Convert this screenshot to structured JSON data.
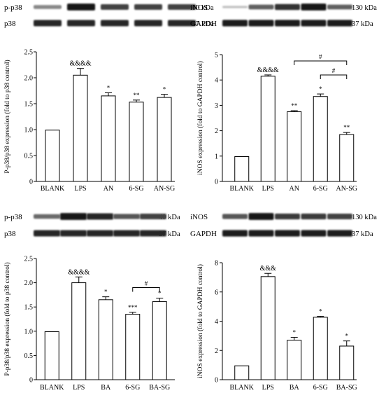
{
  "panels": [
    {
      "blots": [
        {
          "label": "p-p38",
          "kda": "40 kDa",
          "intensity": [
            0.35,
            0.95,
            0.7,
            0.7,
            0.7
          ]
        },
        {
          "label": "p38",
          "kda": "37 kDa",
          "intensity": [
            0.85,
            0.85,
            0.85,
            0.85,
            0.85
          ]
        }
      ]
    },
    {
      "blots": [
        {
          "label": "iNOS",
          "kda": "130 kDa",
          "intensity": [
            0.05,
            0.55,
            0.8,
            0.95,
            0.55
          ]
        },
        {
          "label": "GAPDH",
          "kda": "37 kDa",
          "intensity": [
            0.9,
            0.9,
            0.9,
            0.9,
            0.9
          ]
        }
      ]
    },
    {
      "blots": [
        {
          "label": "p-p38",
          "kda": "40 kDa",
          "intensity": [
            0.5,
            0.95,
            0.85,
            0.6,
            0.7
          ]
        },
        {
          "label": "p38",
          "kda": "37 kDa",
          "intensity": [
            0.85,
            0.85,
            0.85,
            0.85,
            0.85
          ]
        }
      ]
    },
    {
      "blots": [
        {
          "label": "iNOS",
          "kda": "130 kDa",
          "intensity": [
            0.6,
            0.95,
            0.75,
            0.75,
            0.7
          ]
        },
        {
          "label": "GAPDH",
          "kda": "37 kDa",
          "intensity": [
            0.9,
            0.9,
            0.9,
            0.9,
            0.9
          ]
        }
      ]
    }
  ],
  "chart_data": [
    {
      "type": "bar",
      "categories": [
        "BLANK",
        "LPS",
        "AN",
        "6-SG",
        "AN-SG"
      ],
      "values": [
        0.99,
        2.05,
        1.65,
        1.53,
        1.62
      ],
      "errors": [
        0,
        0.13,
        0.06,
        0.04,
        0.06
      ],
      "annotations": [
        "",
        "&&&&",
        "*",
        "**",
        "*"
      ],
      "brackets": [],
      "ylabel": "P-p38/p38 expression (fold to p38 control)",
      "ylim": [
        0,
        2.5
      ],
      "yticks": [
        "0",
        "0.5",
        "1.0",
        "1.5",
        "2.0",
        "2.5"
      ],
      "grid": false
    },
    {
      "type": "bar",
      "categories": [
        "BLANK",
        "LPS",
        "AN",
        "6-SG",
        "AN-SG"
      ],
      "values": [
        0.98,
        4.15,
        2.75,
        3.35,
        1.85
      ],
      "errors": [
        0,
        0.05,
        0.04,
        0.1,
        0.08
      ],
      "annotations": [
        "",
        "&&&&",
        "**",
        "*",
        "**"
      ],
      "brackets": [
        {
          "from": 2,
          "to": 4,
          "y": 4.75,
          "label": "#"
        },
        {
          "from": 3,
          "to": 4,
          "y": 4.2,
          "label": "#"
        }
      ],
      "ylabel": "iNOS expression (fold to GAPDH control)",
      "ylim": [
        0,
        5
      ],
      "yticks": [
        "0",
        "1",
        "2",
        "3",
        "4",
        "5"
      ],
      "grid": false
    },
    {
      "type": "bar",
      "categories": [
        "BLANK",
        "LPS",
        "BA",
        "6-SG",
        "BA-SG"
      ],
      "values": [
        0.99,
        2.0,
        1.65,
        1.35,
        1.61
      ],
      "errors": [
        0,
        0.12,
        0.06,
        0.04,
        0.07
      ],
      "annotations": [
        "",
        "&&&&",
        "*",
        "***",
        "*"
      ],
      "brackets": [
        {
          "from": 3,
          "to": 4,
          "y": 1.9,
          "label": "#"
        }
      ],
      "ylabel": "P-p38/p38 expression (fold to p38 control)",
      "ylim": [
        0,
        2.5
      ],
      "yticks": [
        "0",
        "0.5",
        "1.0",
        "1.5",
        "2.0",
        "2.5"
      ],
      "grid": false
    },
    {
      "type": "bar",
      "categories": [
        "BLANK",
        "LPS",
        "BA",
        "6-SG",
        "BA-SG"
      ],
      "values": [
        0.95,
        7.05,
        2.7,
        4.27,
        2.3
      ],
      "errors": [
        0,
        0.22,
        0.2,
        0.06,
        0.35
      ],
      "annotations": [
        "",
        "&&&",
        "*",
        "*",
        "*"
      ],
      "brackets": [],
      "ylabel": "iNOS expression (fold to GAPDH control)",
      "ylim": [
        0,
        8
      ],
      "yticks": [
        "0",
        "2",
        "4",
        "6",
        "8"
      ],
      "grid": false
    }
  ]
}
